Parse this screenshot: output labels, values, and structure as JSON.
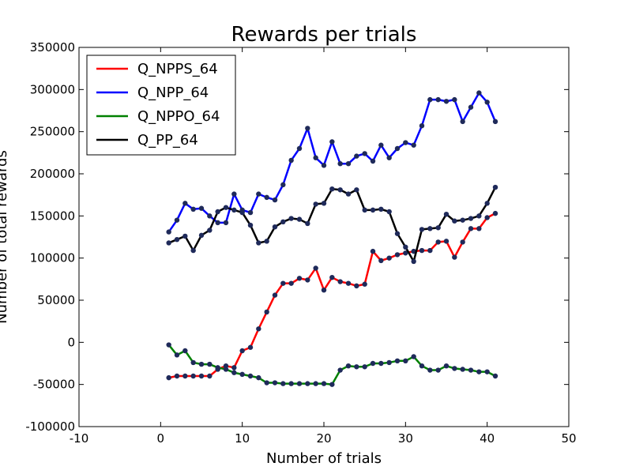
{
  "chart_data": {
    "type": "line",
    "title": "Rewards per trials",
    "xlabel": "Number of trials",
    "ylabel": "Number of total rewards",
    "xlim": [
      -10,
      50
    ],
    "ylim": [
      -100000,
      350000
    ],
    "xticks": [
      -10,
      0,
      10,
      20,
      30,
      40,
      50
    ],
    "yticks": [
      -100000,
      -50000,
      0,
      50000,
      100000,
      150000,
      200000,
      250000,
      300000,
      350000
    ],
    "grid": false,
    "legend_position": "top-left",
    "x": [
      1,
      2,
      3,
      4,
      5,
      6,
      7,
      8,
      9,
      10,
      11,
      12,
      13,
      14,
      15,
      16,
      17,
      18,
      19,
      20,
      21,
      22,
      23,
      24,
      25,
      26,
      27,
      28,
      29,
      30,
      31,
      32,
      33,
      34,
      35,
      36,
      37,
      38,
      39,
      40,
      41
    ],
    "series": [
      {
        "name": "Q_NPPS_64",
        "color": "#ff0000",
        "values": [
          -42000,
          -40000,
          -40000,
          -40000,
          -40000,
          -40000,
          -32000,
          -28000,
          -30000,
          -10000,
          -6000,
          16000,
          36000,
          56000,
          70000,
          70000,
          76000,
          74000,
          88000,
          62000,
          77000,
          72000,
          70000,
          67000,
          69000,
          108000,
          97000,
          100000,
          104000,
          106000,
          108000,
          109000,
          109000,
          119000,
          120000,
          101000,
          119000,
          135000,
          135000,
          148000,
          153000
        ]
      },
      {
        "name": "Q_NPP_64",
        "color": "#0000ff",
        "values": [
          131000,
          145000,
          165000,
          158000,
          159000,
          150000,
          142000,
          142000,
          176000,
          157000,
          154000,
          176000,
          172000,
          169000,
          187000,
          216000,
          230000,
          254000,
          219000,
          210000,
          238000,
          212000,
          212000,
          221000,
          224000,
          215000,
          234000,
          219000,
          230000,
          237000,
          234000,
          257000,
          288000,
          288000,
          286000,
          288000,
          262000,
          279000,
          296000,
          285000,
          262000
        ]
      },
      {
        "name": "Q_NPPO_64",
        "color": "#008000",
        "values": [
          -3000,
          -15000,
          -10000,
          -24000,
          -26000,
          -26000,
          -30000,
          -32000,
          -36000,
          -38000,
          -40000,
          -42000,
          -48000,
          -48000,
          -49000,
          -49000,
          -49000,
          -49000,
          -49000,
          -49000,
          -50000,
          -33000,
          -28000,
          -29000,
          -29000,
          -25000,
          -25000,
          -24000,
          -22000,
          -22000,
          -17000,
          -28000,
          -33000,
          -33000,
          -28000,
          -31000,
          -32000,
          -33000,
          -35000,
          -35000,
          -40000
        ]
      },
      {
        "name": "Q_PP_64",
        "color": "#000000",
        "values": [
          118000,
          122000,
          126000,
          109000,
          127000,
          133000,
          155000,
          160000,
          157000,
          154000,
          139000,
          118000,
          120000,
          137000,
          143000,
          147000,
          146000,
          141000,
          164000,
          165000,
          182000,
          181000,
          176000,
          181000,
          157000,
          157000,
          158000,
          155000,
          129000,
          113000,
          96000,
          134000,
          135000,
          136000,
          152000,
          144000,
          145000,
          147000,
          150000,
          165000,
          184000
        ]
      }
    ],
    "marker_color": "#1f2a5a"
  }
}
